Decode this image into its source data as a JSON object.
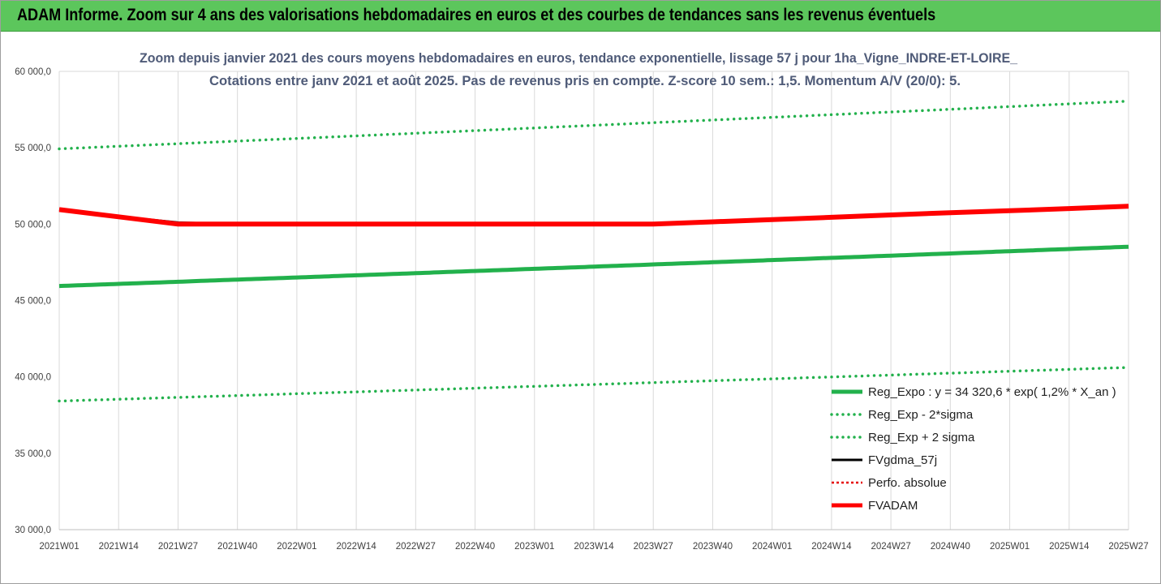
{
  "page": {
    "banner_title": "ADAM Informe. Zoom sur 4 ans des valorisations hebdomadaires en euros et des courbes de tendances sans les revenus éventuels"
  },
  "chart_data": {
    "type": "line",
    "title": "Zoom depuis janvier 2021 des cours moyens hebdomadaires en euros, tendance exponentielle, lissage 57 j pour 1ha_Vigne_INDRE-ET-LOIRE_",
    "subtitle": "Cotations entre janv 2021 et août 2025.  Pas de revenus pris en compte. Z-score 10 sem.: 1,5. Momentum A/V (20/0): 5.",
    "ylim": [
      30000,
      60000
    ],
    "y_ticks": [
      60000,
      55000,
      50000,
      45000,
      40000,
      35000,
      30000
    ],
    "y_tick_labels": [
      "60 000,0",
      "55 000,0",
      "50 000,0",
      "45 000,0",
      "40 000,0",
      "35 000,0",
      "30 000,0"
    ],
    "x_tick_labels": [
      "2021W01",
      "2021W14",
      "2021W27",
      "2021W40",
      "2022W01",
      "2022W14",
      "2022W27",
      "2022W40",
      "2023W01",
      "2023W14",
      "2023W27",
      "2023W40",
      "2024W01",
      "2024W14",
      "2024W27",
      "2024W40",
      "2025W01",
      "2025W14",
      "2025W27"
    ],
    "grid": "vertical",
    "legend_position": "bottom-right",
    "series": [
      {
        "name": "Reg_Expo : y = 34 320,6 * exp( 1,2% *  X_an )",
        "style": "solid",
        "color": "#22b14c",
        "width": 5,
        "x": [
          0,
          234
        ],
        "y": [
          45950,
          48520
        ]
      },
      {
        "name": "Reg_Exp - 2*sigma",
        "style": "dotted",
        "color": "#22b14c",
        "width": 3.5,
        "x": [
          0,
          234
        ],
        "y": [
          38420,
          40620
        ]
      },
      {
        "name": "Reg_Exp + 2 sigma",
        "style": "dotted",
        "color": "#22b14c",
        "width": 3.5,
        "x": [
          0,
          234
        ],
        "y": [
          54930,
          58050
        ]
      },
      {
        "name": "FVgdma_57j",
        "style": "solid",
        "color": "#000000",
        "width": 3,
        "x": [
          0,
          13,
          26,
          39,
          52,
          65,
          78,
          91,
          104,
          117,
          130,
          143,
          156,
          169,
          182,
          195,
          208,
          221,
          234
        ],
        "y": [
          50950,
          50500,
          50100,
          50000,
          50000,
          50000,
          50000,
          50000,
          50000,
          50000,
          50000,
          50150,
          50300,
          50450,
          50600,
          50750,
          50880,
          51020,
          51170
        ]
      },
      {
        "name": "Perfo. absolue",
        "style": "dotted",
        "color": "#e60000",
        "width": 3,
        "x": [],
        "y": []
      },
      {
        "name": "FVADAM",
        "style": "solid",
        "color": "#ff0000",
        "width": 6,
        "x": [
          0,
          13,
          26,
          39,
          52,
          65,
          78,
          91,
          104,
          117,
          130,
          143,
          156,
          169,
          182,
          195,
          208,
          221,
          234
        ],
        "y": [
          50950,
          50480,
          50000,
          50000,
          50000,
          50000,
          50000,
          50000,
          50000,
          50000,
          50000,
          50150,
          50300,
          50450,
          50600,
          50750,
          50880,
          51020,
          51170
        ]
      }
    ]
  }
}
